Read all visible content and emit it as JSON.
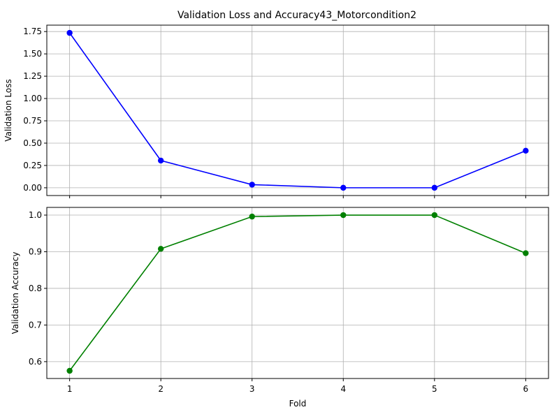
{
  "chart_data": [
    {
      "type": "line",
      "title": "Validation Loss and Accuracy43_Motorcondition2",
      "xlabel": "",
      "ylabel": "Validation Loss",
      "x": [
        1,
        2,
        3,
        4,
        5,
        6
      ],
      "series": [
        {
          "values": [
            1.735,
            0.305,
            0.035,
            0.0,
            0.0,
            0.415
          ],
          "color": "#0000ff",
          "marker": "circle"
        }
      ],
      "xlim": [
        0.75,
        6.25
      ],
      "ylim": [
        -0.087,
        1.822
      ],
      "yticks": [
        0.0,
        0.25,
        0.5,
        0.75,
        1.0,
        1.25,
        1.5,
        1.75
      ],
      "ytick_labels": [
        "0.00",
        "0.25",
        "0.50",
        "0.75",
        "1.00",
        "1.25",
        "1.50",
        "1.75"
      ],
      "xticks": [
        1,
        2,
        3,
        4,
        5,
        6
      ],
      "xtick_labels_visible": false,
      "grid": true
    },
    {
      "type": "line",
      "title": "",
      "xlabel": "Fold",
      "ylabel": "Validation Accuracy",
      "x": [
        1,
        2,
        3,
        4,
        5,
        6
      ],
      "series": [
        {
          "values": [
            0.575,
            0.908,
            0.996,
            1.0,
            1.0,
            0.896
          ],
          "color": "#008000",
          "marker": "circle"
        }
      ],
      "xlim": [
        0.75,
        6.25
      ],
      "ylim": [
        0.554,
        1.021
      ],
      "yticks": [
        0.6,
        0.7,
        0.8,
        0.9,
        1.0
      ],
      "ytick_labels": [
        "0.6",
        "0.7",
        "0.8",
        "0.9",
        "1.0"
      ],
      "xticks": [
        1,
        2,
        3,
        4,
        5,
        6
      ],
      "xtick_labels": [
        "1",
        "2",
        "3",
        "4",
        "5",
        "6"
      ],
      "xtick_labels_visible": true,
      "grid": true
    }
  ]
}
